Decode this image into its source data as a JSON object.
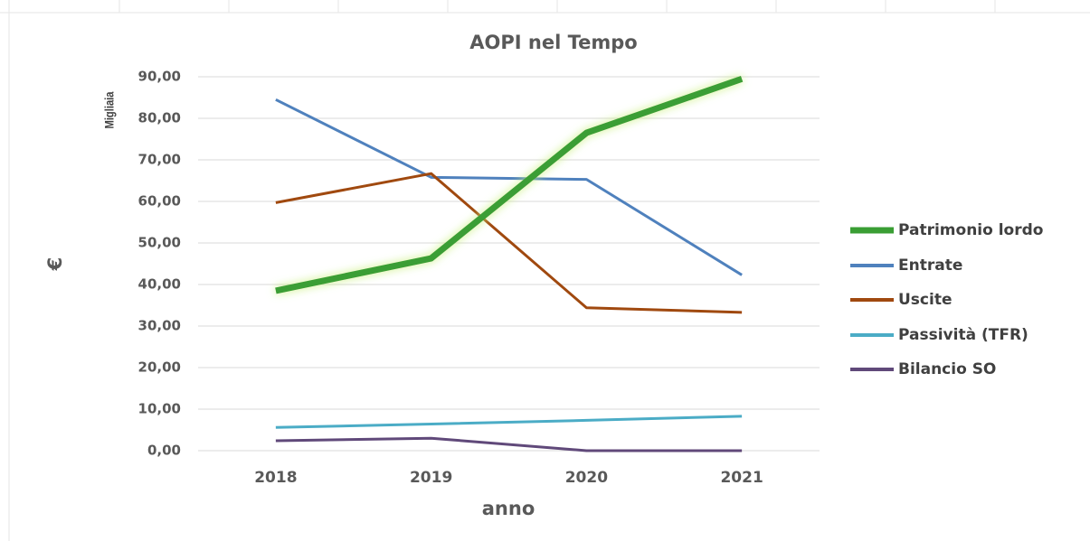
{
  "chart_data": {
    "type": "line",
    "title": "AOPI nel Tempo",
    "y_axis_label": "€",
    "y_units_label": "Migliaia",
    "x_axis_label": "anno",
    "categories": [
      "2018",
      "2019",
      "2020",
      "2021"
    ],
    "series": [
      {
        "name": "Patrimonio lordo",
        "color": "#3a9e34",
        "values": [
          38.5,
          46.3,
          76.5,
          89.5
        ]
      },
      {
        "name": "Entrate",
        "color": "#4f81bd",
        "values": [
          84.5,
          65.8,
          65.3,
          42.3
        ]
      },
      {
        "name": "Uscite",
        "color": "#a0490f",
        "values": [
          59.7,
          66.7,
          34.4,
          33.3
        ]
      },
      {
        "name": "Passività (TFR)",
        "color": "#4bacc6",
        "values": [
          5.6,
          6.4,
          7.3,
          8.3
        ]
      },
      {
        "name": "Bilancio SO",
        "color": "#60497a",
        "values": [
          2.4,
          3.0,
          0.0,
          0.0
        ]
      }
    ],
    "ylim": [
      0,
      90
    ],
    "yticks": [
      {
        "value": 0,
        "label": "0,00"
      },
      {
        "value": 10,
        "label": "10,00"
      },
      {
        "value": 20,
        "label": "20,00"
      },
      {
        "value": 30,
        "label": "30,00"
      },
      {
        "value": 40,
        "label": "40,00"
      },
      {
        "value": 50,
        "label": "50,00"
      },
      {
        "value": 60,
        "label": "60,00"
      },
      {
        "value": 70,
        "label": "70,00"
      },
      {
        "value": 80,
        "label": "80,00"
      },
      {
        "value": 90,
        "label": "90,00"
      }
    ],
    "grid": true,
    "legend": "right"
  }
}
